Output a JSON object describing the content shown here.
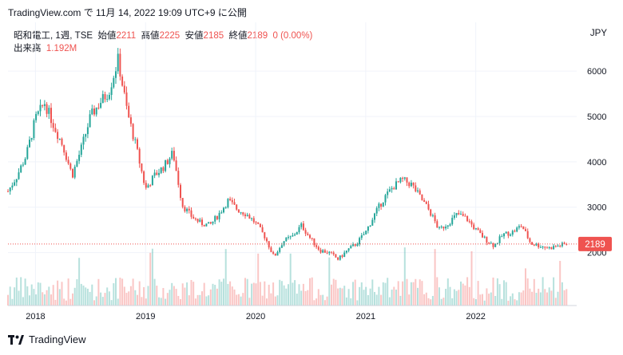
{
  "header": {
    "source_line": "TradingView.com で 11月 14, 2022 19:09 UTC+9 に公開"
  },
  "legend": {
    "symbol": "昭和電工, 1週, TSE",
    "open_label": "始値",
    "open_value": "2211",
    "high_label": "高値",
    "high_value": "2225",
    "low_label": "安値",
    "low_value": "2185",
    "close_label": "終値",
    "close_value": "2189",
    "change": "0 (0.00%)",
    "volume_label": "出来高",
    "volume_value": "1.192M"
  },
  "currency": "JPY",
  "last_price_tag": "2189",
  "footer": {
    "brand": "TradingView"
  },
  "colors": {
    "up": "#26a69a",
    "down": "#ef5350",
    "grid": "#f0f3fa",
    "text": "#131722"
  },
  "chart_data": {
    "type": "candlestick",
    "interval": "1週",
    "x_ticks": [
      "2018",
      "2019",
      "2020",
      "2021",
      "2022"
    ],
    "y_ticks": [
      2000,
      3000,
      4000,
      5000,
      6000
    ],
    "ylim": [
      1500,
      6600
    ],
    "last_close": 2189,
    "price_path": [
      [
        "2017-10",
        3350
      ],
      [
        "2017-11",
        3700
      ],
      [
        "2017-12",
        4150
      ],
      [
        "2018-01",
        4950
      ],
      [
        "2018-02",
        5300
      ],
      [
        "2018-03",
        4800
      ],
      [
        "2018-04",
        4350
      ],
      [
        "2018-05",
        3700
      ],
      [
        "2018-06",
        4300
      ],
      [
        "2018-07",
        5000
      ],
      [
        "2018-08",
        5300
      ],
      [
        "2018-09",
        5550
      ],
      [
        "2018-10",
        6250
      ],
      [
        "2018-11",
        5100
      ],
      [
        "2018-12",
        4300
      ],
      [
        "2019-01",
        3400
      ],
      [
        "2019-02",
        3700
      ],
      [
        "2019-03",
        3900
      ],
      [
        "2019-04",
        4200
      ],
      [
        "2019-05",
        3050
      ],
      [
        "2019-06",
        2800
      ],
      [
        "2019-07",
        2650
      ],
      [
        "2019-08",
        2600
      ],
      [
        "2019-09",
        2850
      ],
      [
        "2019-10",
        3150
      ],
      [
        "2019-11",
        2950
      ],
      [
        "2019-12",
        2850
      ],
      [
        "2020-01",
        2650
      ],
      [
        "2020-02",
        2350
      ],
      [
        "2020-03",
        1900
      ],
      [
        "2020-04",
        2250
      ],
      [
        "2020-05",
        2350
      ],
      [
        "2020-06",
        2600
      ],
      [
        "2020-07",
        2300
      ],
      [
        "2020-08",
        2050
      ],
      [
        "2020-09",
        2000
      ],
      [
        "2020-10",
        1850
      ],
      [
        "2020-11",
        2050
      ],
      [
        "2020-12",
        2200
      ],
      [
        "2021-01",
        2450
      ],
      [
        "2021-02",
        2850
      ],
      [
        "2021-03",
        3200
      ],
      [
        "2021-04",
        3450
      ],
      [
        "2021-05",
        3600
      ],
      [
        "2021-06",
        3500
      ],
      [
        "2021-07",
        3200
      ],
      [
        "2021-08",
        2900
      ],
      [
        "2021-09",
        2500
      ],
      [
        "2021-10",
        2650
      ],
      [
        "2021-11",
        2850
      ],
      [
        "2021-12",
        2750
      ],
      [
        "2022-01",
        2500
      ],
      [
        "2022-02",
        2300
      ],
      [
        "2022-03",
        2150
      ],
      [
        "2022-04",
        2400
      ],
      [
        "2022-05",
        2450
      ],
      [
        "2022-06",
        2600
      ],
      [
        "2022-07",
        2200
      ],
      [
        "2022-08",
        2150
      ],
      [
        "2022-09",
        2100
      ],
      [
        "2022-10",
        2150
      ],
      [
        "2022-11",
        2189
      ]
    ]
  }
}
